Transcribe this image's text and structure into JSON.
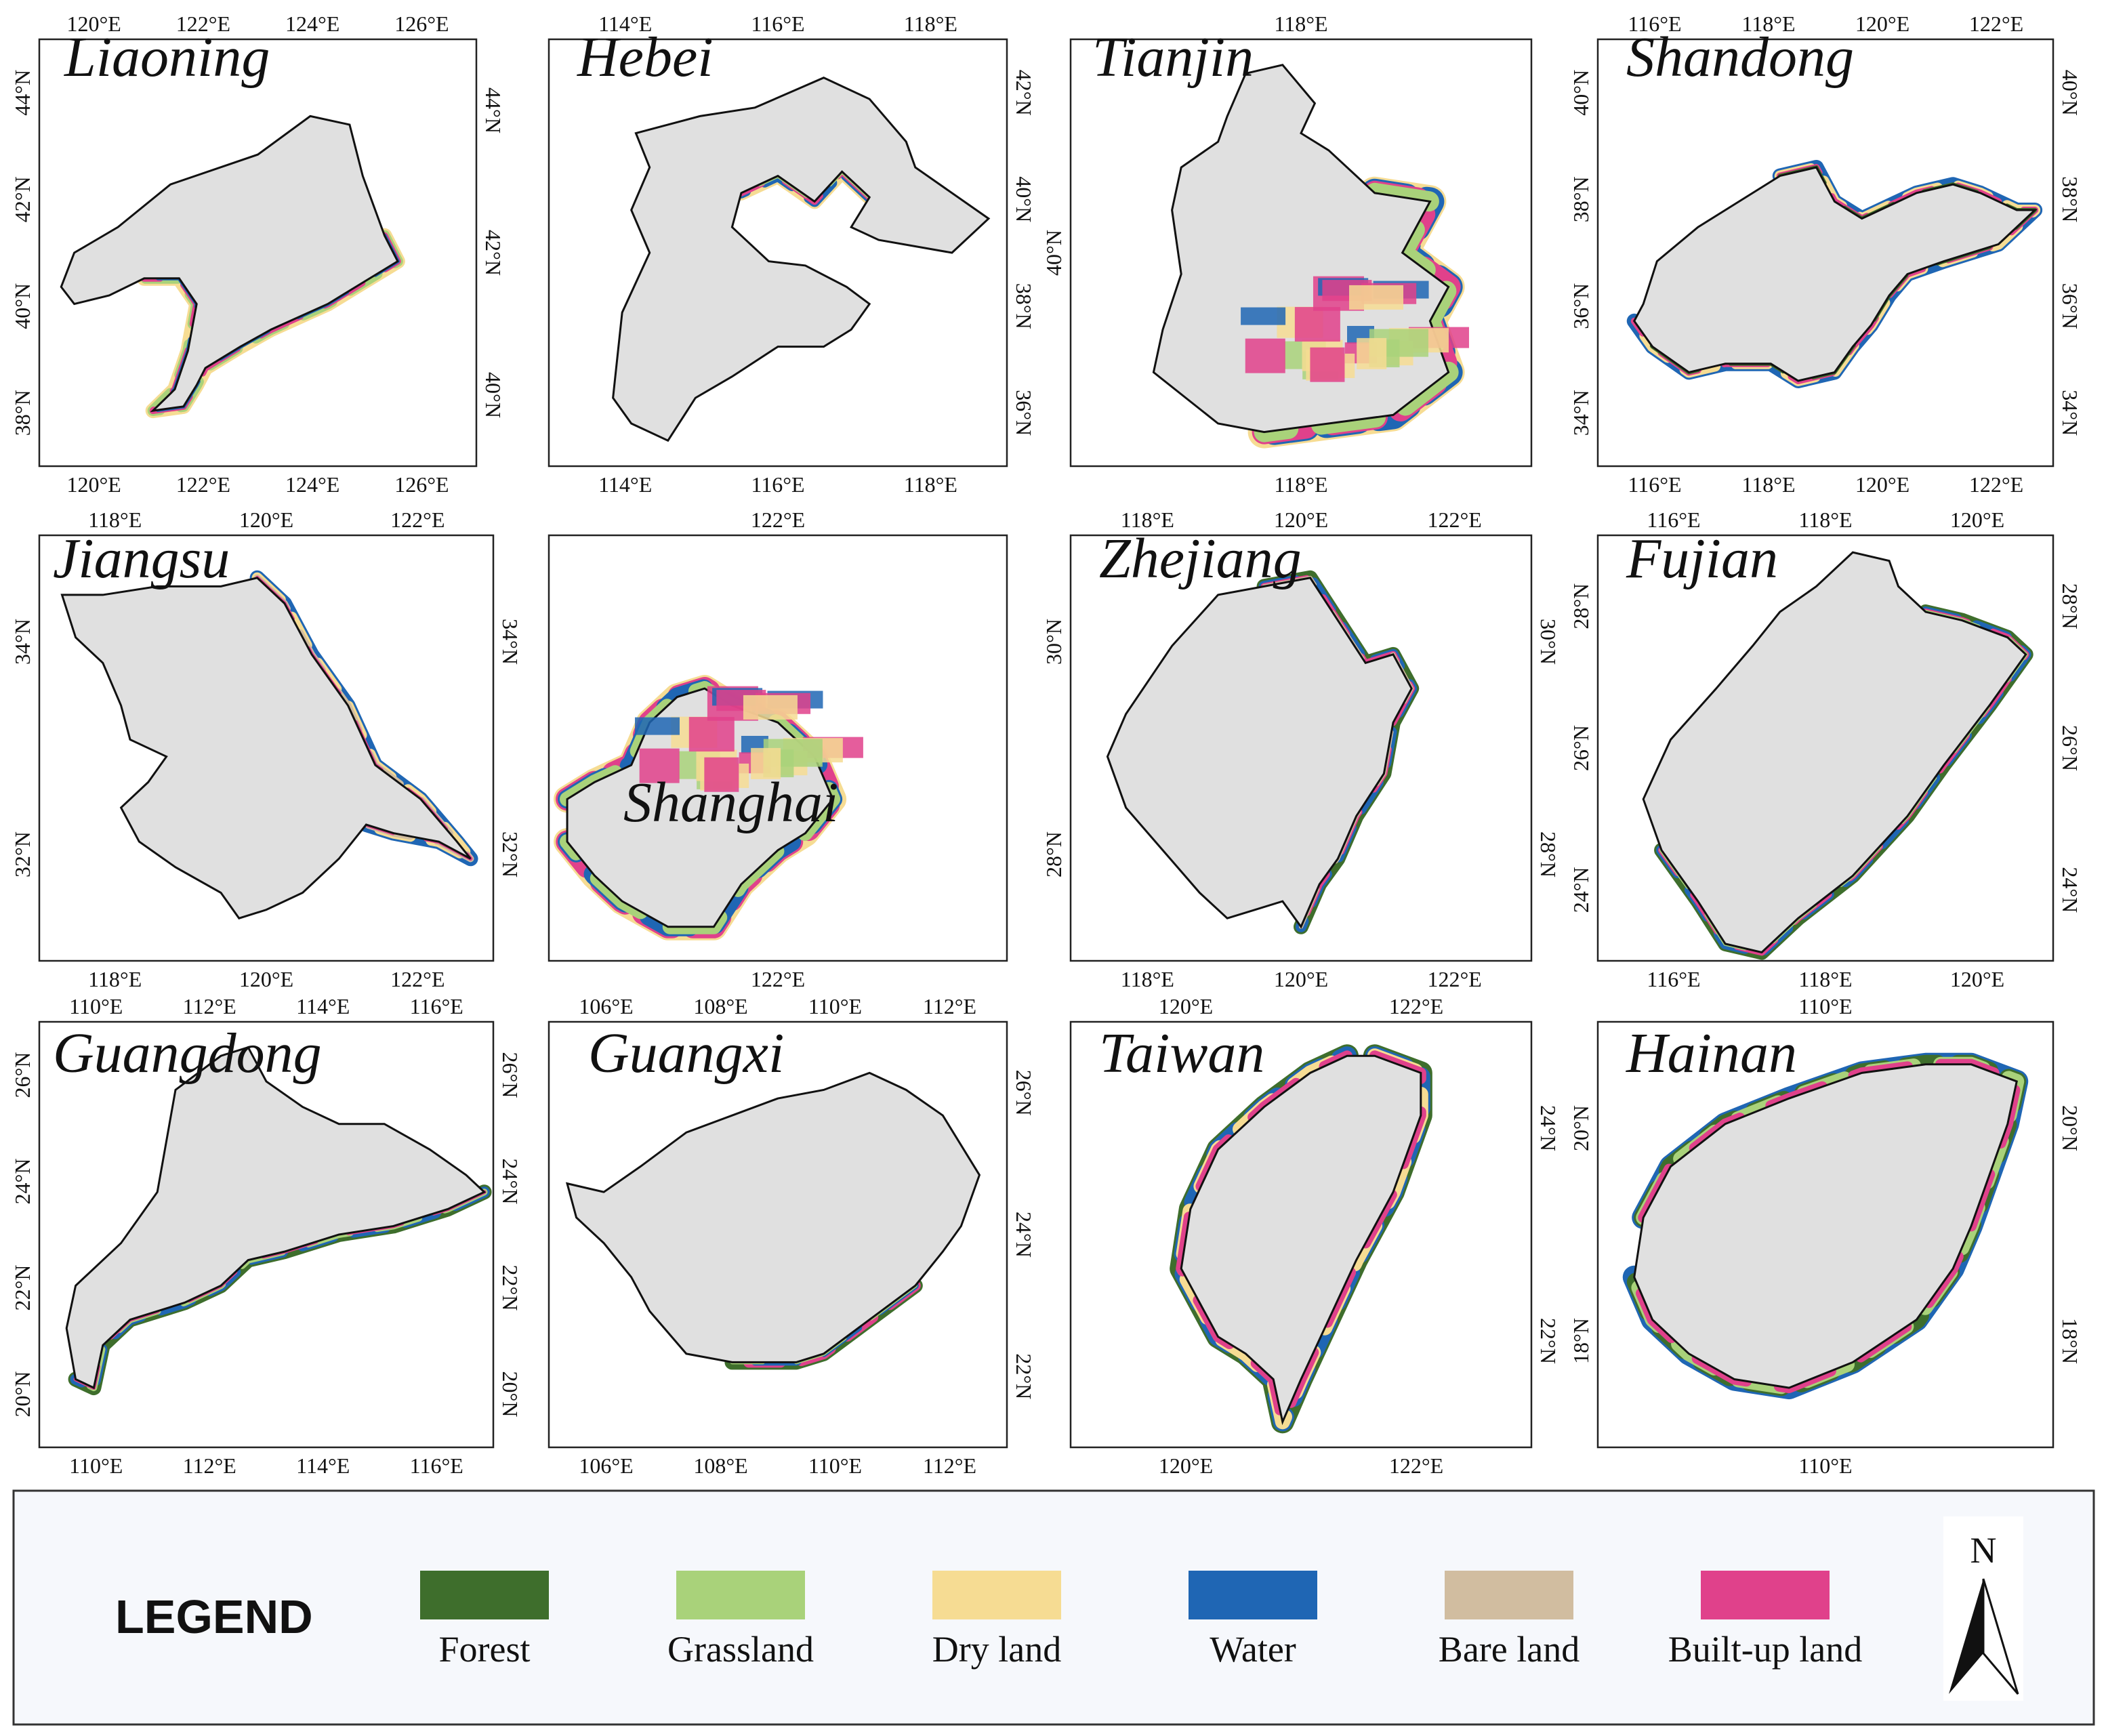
{
  "colors": {
    "land": "#e0e0e0",
    "forest": "#3e6e2c",
    "grassland": "#a9d27a",
    "dry_land": "#f6dc93",
    "water": "#1f66b4",
    "bare_land": "#d1bda0",
    "built_up": "#e0418b",
    "legend_bg": "#f6f8fc"
  },
  "panels": [
    {
      "name": "Liaoning",
      "top_ticks": [
        "120°E",
        "122°E",
        "124°E",
        "126°E"
      ],
      "bottom_ticks": [
        "120°E",
        "122°E",
        "124°E",
        "126°E"
      ],
      "left_ticks": [
        "44°N",
        "42°N",
        "40°N",
        "38°N"
      ],
      "right_ticks": [
        "44°N",
        "42°N",
        "40°N"
      ]
    },
    {
      "name": "Hebei",
      "top_ticks": [
        "114°E",
        "116°E",
        "118°E"
      ],
      "bottom_ticks": [
        "114°E",
        "116°E",
        "118°E"
      ],
      "left_ticks": [],
      "right_ticks": [
        "42°N",
        "40°N",
        "38°N",
        "36°N"
      ]
    },
    {
      "name": "Tianjin",
      "top_ticks": [
        "118°E"
      ],
      "bottom_ticks": [
        "118°E"
      ],
      "left_ticks": [
        "40°N"
      ],
      "right_ticks": []
    },
    {
      "name": "Shandong",
      "top_ticks": [
        "116°E",
        "118°E",
        "120°E",
        "122°E"
      ],
      "bottom_ticks": [
        "116°E",
        "118°E",
        "120°E",
        "122°E"
      ],
      "left_ticks": [
        "40°N",
        "38°N",
        "36°N",
        "34°N"
      ],
      "right_ticks": [
        "40°N",
        "38°N",
        "36°N",
        "34°N"
      ]
    },
    {
      "name": "Jiangsu",
      "top_ticks": [
        "118°E",
        "120°E",
        "122°E"
      ],
      "bottom_ticks": [
        "118°E",
        "120°E",
        "122°E"
      ],
      "left_ticks": [
        "34°N",
        "32°N"
      ],
      "right_ticks": [
        "34°N",
        "32°N"
      ]
    },
    {
      "name": "Shanghai",
      "top_ticks": [
        "122°E"
      ],
      "bottom_ticks": [
        "122°E"
      ],
      "left_ticks": [],
      "right_ticks": []
    },
    {
      "name": "Zhejiang",
      "top_ticks": [
        "118°E",
        "120°E",
        "122°E"
      ],
      "bottom_ticks": [
        "118°E",
        "120°E",
        "122°E"
      ],
      "left_ticks": [
        "30°N",
        "28°N"
      ],
      "right_ticks": [
        "30°N",
        "28°N"
      ]
    },
    {
      "name": "Fujian",
      "top_ticks": [
        "116°E",
        "118°E",
        "120°E"
      ],
      "bottom_ticks": [
        "116°E",
        "118°E",
        "120°E"
      ],
      "left_ticks": [
        "28°N",
        "26°N",
        "24°N"
      ],
      "right_ticks": [
        "28°N",
        "26°N",
        "24°N"
      ]
    },
    {
      "name": "Guangdong",
      "top_ticks": [
        "110°E",
        "112°E",
        "114°E",
        "116°E"
      ],
      "bottom_ticks": [
        "110°E",
        "112°E",
        "114°E",
        "116°E"
      ],
      "left_ticks": [
        "26°N",
        "24°N",
        "22°N",
        "20°N"
      ],
      "right_ticks": [
        "26°N",
        "24°N",
        "22°N",
        "20°N"
      ]
    },
    {
      "name": "Guangxi",
      "top_ticks": [
        "106°E",
        "108°E",
        "110°E",
        "112°E"
      ],
      "bottom_ticks": [
        "106°E",
        "108°E",
        "110°E",
        "112°E"
      ],
      "left_ticks": [],
      "right_ticks": [
        "26°N",
        "24°N",
        "22°N"
      ]
    },
    {
      "name": "Taiwan",
      "top_ticks": [
        "120°E",
        "122°E"
      ],
      "bottom_ticks": [
        "120°E",
        "122°E"
      ],
      "left_ticks": [],
      "right_ticks": [
        "24°N",
        "22°N"
      ]
    },
    {
      "name": "Hainan",
      "top_ticks": [
        "110°E"
      ],
      "bottom_ticks": [
        "110°E"
      ],
      "left_ticks": [
        "20°N",
        "18°N"
      ],
      "right_ticks": [
        "20°N",
        "18°N"
      ]
    }
  ],
  "legend": {
    "title": "LEGEND",
    "items": [
      {
        "label": "Forest",
        "color": "#3e6e2c"
      },
      {
        "label": "Grassland",
        "color": "#a9d27a"
      },
      {
        "label": "Dry land",
        "color": "#f6dc93"
      },
      {
        "label": "Water",
        "color": "#1f66b4"
      },
      {
        "label": "Bare land",
        "color": "#d1bda0"
      },
      {
        "label": "Built-up land",
        "color": "#e0418b"
      }
    ],
    "north_label": "N"
  }
}
